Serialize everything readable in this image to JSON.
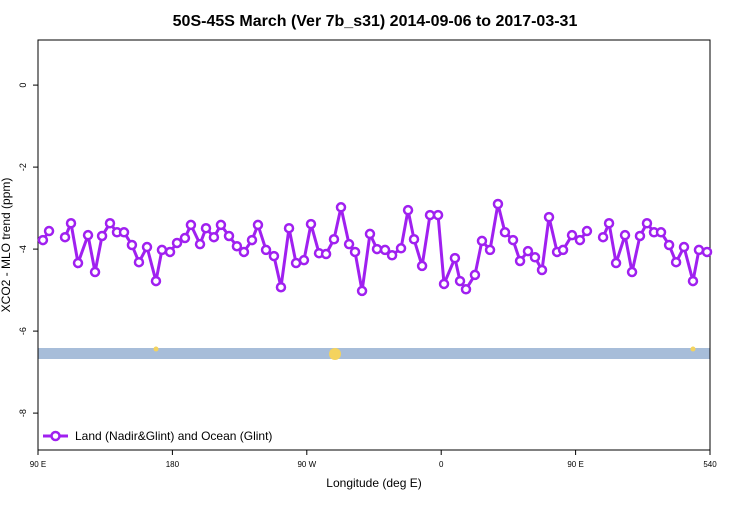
{
  "chart_data": {
    "type": "line",
    "title": "50S-45S March (Ver 7b_s31)   2014-09-06 to 2017-03-31",
    "x_label": "Longitude (deg E)",
    "y_label": "XCO2 - MLO trend (ppm)",
    "x": [
      93.3,
      97.4,
      102.5,
      108.1,
      112.1,
      116.8,
      123.5,
      128.2,
      132.9,
      138.2,
      142.9,
      147.6,
      152.9,
      157.6,
      163,
      169,
      173,
      178.4,
      183.1,
      188.4,
      192.4,
      198.5,
      202.5,
      207.8,
      212.5,
      217.9,
      223.2,
      227.9,
      233.3,
      237.3,
      242.7,
      248,
      252.7,
      258.1,
      262.8,
      268.1,
      272.8,
      278.2,
      282.9,
      288.2,
      292.9,
      298.3,
      302.3,
      307,
      312.3,
      317,
      322.4,
      327.1,
      333.1,
      337.8,
      341.8,
      347.2,
      352.5,
      357.9,
      361.9,
      369.2,
      372.6,
      376.6,
      382.6,
      387.3,
      392.7,
      398,
      402.7,
      408.1,
      412.8,
      418.1,
      422.8,
      427.5,
      432.2,
      437.6,
      441.6,
      447.6,
      452.9,
      457.6,
      462.5,
      468.4,
      472.4,
      477.1,
      483.1,
      487.8,
      493.1,
      497.8,
      502.5,
      507.2,
      512.6,
      517.3,
      522.6,
      528.6,
      532.6,
      538
    ],
    "series": [
      {
        "name": "Land (Nadir&Glint) and Ocean (Glint)",
        "color": "#a020f0",
        "values": [
          -3.78,
          -3.56,
          null,
          -3.71,
          -3.37,
          -4.34,
          -3.66,
          -4.56,
          -3.68,
          -3.37,
          -3.59,
          -3.59,
          -3.9,
          -4.32,
          -3.95,
          -4.78,
          -4.02,
          -4.07,
          -3.85,
          -3.73,
          -3.41,
          -3.88,
          -3.49,
          -3.71,
          -3.41,
          -3.68,
          -3.93,
          -4.07,
          -3.78,
          -3.41,
          -4.02,
          -4.17,
          -4.93,
          -3.49,
          -4.34,
          -4.27,
          -3.39,
          -4.1,
          -4.12,
          -3.76,
          -2.98,
          -3.88,
          -4.07,
          -5.02,
          -3.63,
          -4.0,
          -4.02,
          -4.15,
          -3.98,
          -3.05,
          -3.76,
          -4.41,
          -3.17,
          -3.17,
          -4.85,
          -4.22,
          -4.78,
          -4.98,
          -4.63,
          -3.8,
          -4.02,
          -2.9,
          -3.59,
          -3.78,
          -4.29,
          -4.05,
          -4.2,
          -4.51,
          -3.22,
          -4.07,
          -4.02,
          -3.66,
          -3.78,
          -3.56,
          null,
          -3.71,
          -3.37,
          -4.34,
          -3.66,
          -4.56,
          -3.68,
          -3.37,
          -3.59,
          -3.59,
          -3.9,
          -4.32,
          -3.95,
          -4.78,
          -4.02,
          -4.07
        ]
      }
    ],
    "xlim": [
      90,
      540
    ],
    "xticks": [
      {
        "value": 90,
        "label": "90 E"
      },
      180,
      {
        "value": 270,
        "label": "90 W"
      },
      {
        "value": 360,
        "label": "0"
      },
      {
        "value": 450,
        "label": "90 E"
      },
      540
    ],
    "ylim": [
      -8.9,
      1.1
    ],
    "yticks": [
      0,
      -2,
      -4,
      -6,
      -8
    ],
    "legend": "bottom-left"
  }
}
